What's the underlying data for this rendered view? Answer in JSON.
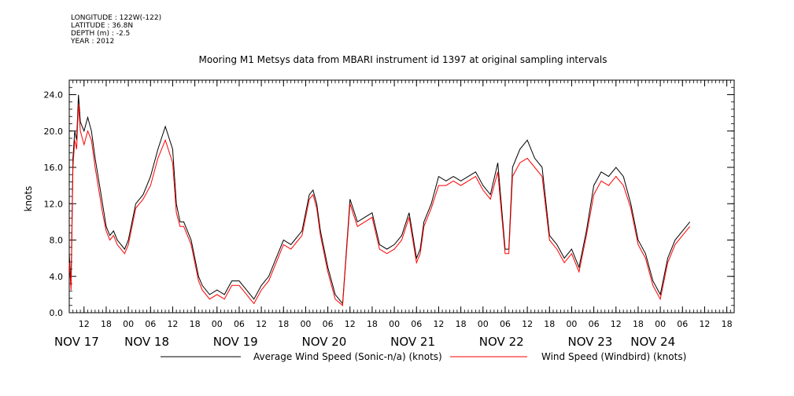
{
  "header": {
    "lines": [
      "LONGITUDE : 122W(-122)",
      "LATITUDE : 36.8N",
      "DEPTH (m) : -2.5",
      "YEAR : 2012"
    ]
  },
  "chart_data": {
    "type": "line",
    "title": "Mooring M1 Metsys data from MBARI instrument id 1397 at original sampling intervals",
    "ylabel": "knots",
    "ylim": [
      0,
      25.6
    ],
    "yticks": [
      0.0,
      4.0,
      8.0,
      12.0,
      16.0,
      20.0,
      24.0
    ],
    "ytick_labels": [
      "0.0",
      "4.0",
      "8.0",
      "12.0",
      "16.0",
      "20.0",
      "24.0"
    ],
    "xlim_hours": [
      0,
      180
    ],
    "x_start": "2012-11-17 08:00",
    "hour_ticks": [
      {
        "h": 4,
        "label": "12"
      },
      {
        "h": 10,
        "label": "18"
      },
      {
        "h": 16,
        "label": "00"
      },
      {
        "h": 22,
        "label": "06"
      },
      {
        "h": 28,
        "label": "12"
      },
      {
        "h": 34,
        "label": "18"
      },
      {
        "h": 40,
        "label": "00"
      },
      {
        "h": 46,
        "label": "06"
      },
      {
        "h": 52,
        "label": "12"
      },
      {
        "h": 58,
        "label": "18"
      },
      {
        "h": 64,
        "label": "00"
      },
      {
        "h": 70,
        "label": "06"
      },
      {
        "h": 76,
        "label": "12"
      },
      {
        "h": 82,
        "label": "18"
      },
      {
        "h": 88,
        "label": "00"
      },
      {
        "h": 94,
        "label": "06"
      },
      {
        "h": 100,
        "label": "12"
      },
      {
        "h": 106,
        "label": "18"
      },
      {
        "h": 112,
        "label": "00"
      },
      {
        "h": 118,
        "label": "06"
      },
      {
        "h": 124,
        "label": "12"
      },
      {
        "h": 130,
        "label": "18"
      },
      {
        "h": 136,
        "label": "00"
      },
      {
        "h": 142,
        "label": "06"
      },
      {
        "h": 148,
        "label": "12"
      },
      {
        "h": 154,
        "label": "18"
      },
      {
        "h": 160,
        "label": "00"
      },
      {
        "h": 166,
        "label": "06"
      },
      {
        "h": 172,
        "label": "12"
      },
      {
        "h": 178,
        "label": "18"
      }
    ],
    "day_labels": [
      {
        "h": 2,
        "label": "NOV 17"
      },
      {
        "h": 21,
        "label": "NOV 18"
      },
      {
        "h": 45,
        "label": "NOV 19"
      },
      {
        "h": 69,
        "label": "NOV 20"
      },
      {
        "h": 93,
        "label": "NOV 21"
      },
      {
        "h": 117,
        "label": "NOV 22"
      },
      {
        "h": 141,
        "label": "NOV 23"
      },
      {
        "h": 158,
        "label": "NOV 24"
      }
    ],
    "series": [
      {
        "name": "Average Wind Speed (Sonic-n/a) (knots)",
        "color": "#000000",
        "x_hours": [
          0,
          0.5,
          1,
          1.5,
          2,
          2.5,
          3,
          4,
          5,
          6,
          7,
          8,
          9,
          10,
          11,
          12,
          13,
          14,
          15,
          16,
          17,
          18,
          20,
          22,
          24,
          26,
          28,
          29,
          30,
          31,
          32,
          33,
          34,
          35,
          36,
          38,
          40,
          42,
          44,
          46,
          47,
          48,
          49,
          50,
          52,
          54,
          56,
          58,
          60,
          61,
          62,
          63,
          64,
          65,
          66,
          67,
          68,
          70,
          72,
          74,
          76,
          78,
          80,
          82,
          84,
          86,
          88,
          90,
          92,
          94,
          95,
          96,
          97,
          98,
          100,
          102,
          104,
          106,
          108,
          110,
          112,
          114,
          116,
          118,
          119,
          120,
          122,
          124,
          126,
          128,
          130,
          132,
          134,
          136,
          138,
          140,
          142,
          144,
          146,
          148,
          150,
          152,
          154,
          156,
          158,
          160,
          162,
          164,
          166,
          168
        ],
        "values": [
          6.5,
          3.0,
          17.0,
          20.0,
          19.0,
          24.0,
          21.0,
          20.0,
          21.5,
          20.0,
          17.0,
          14.5,
          12.0,
          9.5,
          8.5,
          9.0,
          8.0,
          7.5,
          7.0,
          8.0,
          10.0,
          12.0,
          13.0,
          15.0,
          18.0,
          20.5,
          18.0,
          12.0,
          10.0,
          10.0,
          9.0,
          8.0,
          6.0,
          4.0,
          3.0,
          2.0,
          2.5,
          2.0,
          3.5,
          3.5,
          3.0,
          2.5,
          2.0,
          1.5,
          3.0,
          4.0,
          6.0,
          8.0,
          7.5,
          8.0,
          8.5,
          9.0,
          11.0,
          13.0,
          13.5,
          12.0,
          9.0,
          5.0,
          2.0,
          1.0,
          12.5,
          10.0,
          10.5,
          11.0,
          7.5,
          7.0,
          7.5,
          8.5,
          11.0,
          6.0,
          7.0,
          10.0,
          11.0,
          12.0,
          15.0,
          14.5,
          15.0,
          14.5,
          15.0,
          15.5,
          14.0,
          13.0,
          16.5,
          7.0,
          7.0,
          16.0,
          18.0,
          19.0,
          17.0,
          16.0,
          8.5,
          7.5,
          6.0,
          7.0,
          5.0,
          9.0,
          14.0,
          15.5,
          15.0,
          16.0,
          15.0,
          12.0,
          8.0,
          6.5,
          3.5,
          2.0,
          6.0,
          8.0,
          9.0,
          10.0
        ]
      },
      {
        "name": "Wind Speed (Windbird) (knots)",
        "color": "#ff0000",
        "x_hours": [
          0,
          0.5,
          1,
          1.5,
          2,
          2.5,
          3,
          4,
          5,
          6,
          7,
          8,
          9,
          10,
          11,
          12,
          13,
          14,
          15,
          16,
          17,
          18,
          20,
          22,
          24,
          26,
          28,
          29,
          30,
          31,
          32,
          33,
          34,
          35,
          36,
          38,
          40,
          42,
          44,
          46,
          47,
          48,
          49,
          50,
          52,
          54,
          56,
          58,
          60,
          61,
          62,
          63,
          64,
          65,
          66,
          67,
          68,
          70,
          72,
          74,
          76,
          78,
          80,
          82,
          84,
          86,
          88,
          90,
          92,
          94,
          95,
          96,
          97,
          98,
          100,
          102,
          104,
          106,
          108,
          110,
          112,
          114,
          116,
          118,
          119,
          120,
          122,
          124,
          126,
          128,
          130,
          132,
          134,
          136,
          138,
          140,
          142,
          144,
          146,
          148,
          150,
          152,
          154,
          156,
          158,
          160,
          162,
          164,
          166,
          168
        ],
        "values": [
          5.5,
          2.5,
          16.0,
          19.0,
          18.0,
          23.0,
          20.0,
          18.5,
          20.0,
          19.0,
          16.0,
          13.5,
          11.0,
          9.0,
          8.0,
          8.5,
          7.5,
          7.0,
          6.5,
          7.5,
          9.5,
          11.5,
          12.5,
          14.0,
          17.0,
          19.0,
          16.5,
          11.0,
          9.5,
          9.5,
          8.5,
          7.5,
          5.5,
          3.5,
          2.5,
          1.5,
          2.0,
          1.5,
          3.0,
          3.0,
          2.5,
          2.0,
          1.5,
          1.0,
          2.5,
          3.5,
          5.5,
          7.5,
          7.0,
          7.5,
          8.0,
          8.5,
          10.5,
          12.5,
          13.0,
          11.5,
          8.5,
          4.5,
          1.5,
          0.8,
          12.0,
          9.5,
          10.0,
          10.5,
          7.0,
          6.5,
          7.0,
          8.0,
          10.5,
          5.5,
          6.5,
          9.5,
          10.5,
          11.5,
          14.0,
          14.0,
          14.5,
          14.0,
          14.5,
          15.0,
          13.5,
          12.5,
          15.5,
          6.5,
          6.5,
          15.0,
          16.5,
          17.0,
          16.0,
          15.0,
          8.0,
          7.0,
          5.5,
          6.5,
          4.5,
          8.5,
          13.0,
          14.5,
          14.0,
          15.0,
          14.0,
          11.5,
          7.5,
          6.0,
          3.0,
          1.5,
          5.5,
          7.5,
          8.5,
          9.5
        ]
      }
    ],
    "legend_placement": "bottom",
    "grid": false
  }
}
